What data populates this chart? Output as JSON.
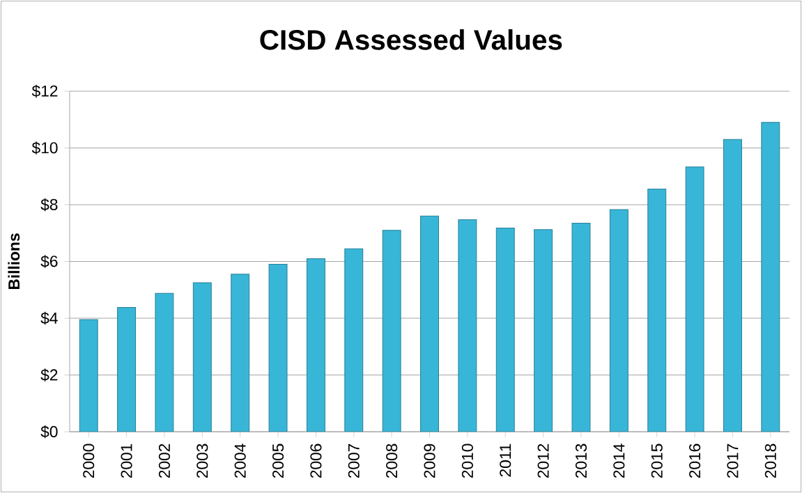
{
  "chart_data": {
    "type": "bar",
    "title": "CISD Assessed Values",
    "ylabel": "Billions",
    "categories": [
      "2000",
      "2001",
      "2002",
      "2003",
      "2004",
      "2005",
      "2006",
      "2007",
      "2008",
      "2009",
      "2010",
      "2011",
      "2012",
      "2013",
      "2014",
      "2015",
      "2016",
      "2017",
      "2018"
    ],
    "values": [
      3.95,
      4.38,
      4.88,
      5.25,
      5.55,
      5.9,
      6.1,
      6.45,
      7.1,
      7.6,
      7.47,
      7.18,
      7.12,
      7.35,
      7.83,
      8.55,
      9.33,
      10.3,
      10.9
    ],
    "color": "#38b6d8",
    "ylim": [
      0,
      12
    ],
    "yticks": [
      {
        "value": 0,
        "label": "$0"
      },
      {
        "value": 2,
        "label": "$2"
      },
      {
        "value": 4,
        "label": "$4"
      },
      {
        "value": 6,
        "label": "$6"
      },
      {
        "value": 8,
        "label": "$8"
      },
      {
        "value": 10,
        "label": "$10"
      },
      {
        "value": 12,
        "label": "$12"
      }
    ],
    "grid": "y"
  }
}
